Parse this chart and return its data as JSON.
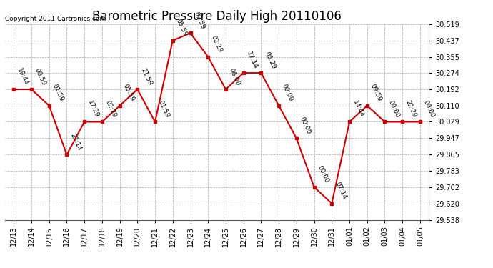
{
  "title": "Barometric Pressure Daily High 20110106",
  "copyright": "Copyright 2011 Cartronics.com",
  "x_labels": [
    "12/13",
    "12/14",
    "12/15",
    "12/16",
    "12/17",
    "12/18",
    "12/19",
    "12/20",
    "12/21",
    "12/22",
    "12/23",
    "12/24",
    "12/25",
    "12/26",
    "12/27",
    "12/28",
    "12/29",
    "12/30",
    "12/31",
    "01/01",
    "01/02",
    "01/03",
    "01/04",
    "01/05"
  ],
  "y_values": [
    30.192,
    30.192,
    30.11,
    29.865,
    30.029,
    30.029,
    30.11,
    30.192,
    30.029,
    30.437,
    30.474,
    30.355,
    30.192,
    30.274,
    30.274,
    30.11,
    29.947,
    29.702,
    29.62,
    30.029,
    30.11,
    30.029,
    30.029,
    30.029
  ],
  "point_labels": [
    "19:44",
    "00:59",
    "01:59",
    "23:14",
    "17:29",
    "02:29",
    "05:59",
    "21:59",
    "01:59",
    "05:59",
    "09:59",
    "02:29",
    "06:00",
    "17:14",
    "05:29",
    "00:00",
    "00:00",
    "00:00",
    "07:14",
    "14:44",
    "09:59",
    "00:00",
    "22:29",
    "00:00"
  ],
  "y_min": 29.538,
  "y_max": 30.519,
  "y_ticks": [
    29.538,
    29.62,
    29.702,
    29.783,
    29.865,
    29.947,
    30.029,
    30.11,
    30.192,
    30.274,
    30.355,
    30.437,
    30.519
  ],
  "line_color": "#cc0000",
  "marker_color": "#cc0000",
  "bg_color": "#ffffff",
  "grid_color": "#aaaaaa",
  "title_fontsize": 12,
  "copyright_fontsize": 6.5,
  "tick_fontsize": 7,
  "point_label_fontsize": 6.5,
  "figwidth": 6.9,
  "figheight": 3.75,
  "dpi": 100
}
